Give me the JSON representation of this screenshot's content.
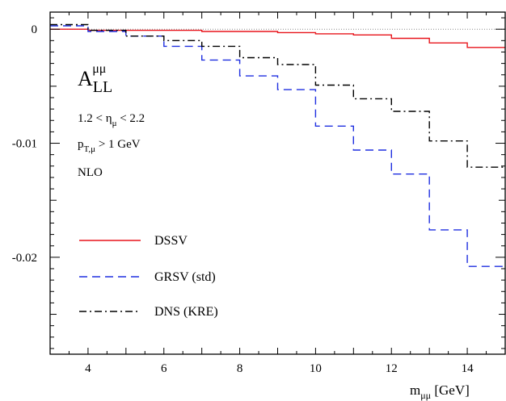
{
  "chart_data": {
    "type": "line",
    "title": "",
    "xlabel": "m_{μμ} [GeV]",
    "ylabel": "",
    "xlim": [
      3,
      15
    ],
    "ylim": [
      -0.0285,
      0.0015
    ],
    "x_ticks": [
      4,
      6,
      8,
      10,
      12,
      14
    ],
    "x_tick_labels": [
      "4",
      "6",
      "8",
      "10",
      "12",
      "14"
    ],
    "y_ticks": [
      0,
      -0.01,
      -0.02
    ],
    "y_tick_labels": [
      "0",
      "-0.01",
      "-0.02"
    ],
    "reference_line": {
      "y": 0,
      "style": "dotted"
    },
    "bin_edges": [
      3,
      4,
      5,
      6,
      7,
      8,
      9,
      10,
      11,
      12,
      13,
      14,
      15
    ],
    "series": [
      {
        "name": "DSSV",
        "color": "#e8141b",
        "dash": "solid",
        "values": [
          0.0,
          -0.0001,
          -0.0001,
          -0.0001,
          -0.0002,
          -0.0002,
          -0.0003,
          -0.0004,
          -0.0005,
          -0.0008,
          -0.0012,
          -0.0016
        ]
      },
      {
        "name": "GRSV (std)",
        "color": "#1f2fe0",
        "dash": "dashed",
        "values": [
          0.0003,
          -0.0002,
          -0.0006,
          -0.0015,
          -0.0027,
          -0.0041,
          -0.0053,
          -0.0085,
          -0.0106,
          -0.0127,
          -0.0176,
          -0.0208
        ]
      },
      {
        "name": "DNS (KRE)",
        "color": "#000000",
        "dash": "dashdot",
        "values": [
          0.0004,
          -0.0001,
          -0.0006,
          -0.001,
          -0.0015,
          -0.0025,
          -0.0031,
          -0.0049,
          -0.0061,
          -0.0072,
          -0.0098,
          -0.0121
        ]
      }
    ],
    "legend_position": "bottom-left",
    "annotations": {
      "observable_main": "A",
      "observable_sub": "LL",
      "observable_sup": "μμ",
      "eta_cut": {
        "pre": "1.2 < η",
        "sub": "μ",
        "post": " < 2.2"
      },
      "pt_cut": {
        "pre": "p",
        "sub": "T,μ",
        "post": " > 1 GeV"
      },
      "order": "NLO"
    },
    "xlabel_parts": {
      "main": "m",
      "sub": "μμ",
      "post": " [GeV]"
    }
  }
}
